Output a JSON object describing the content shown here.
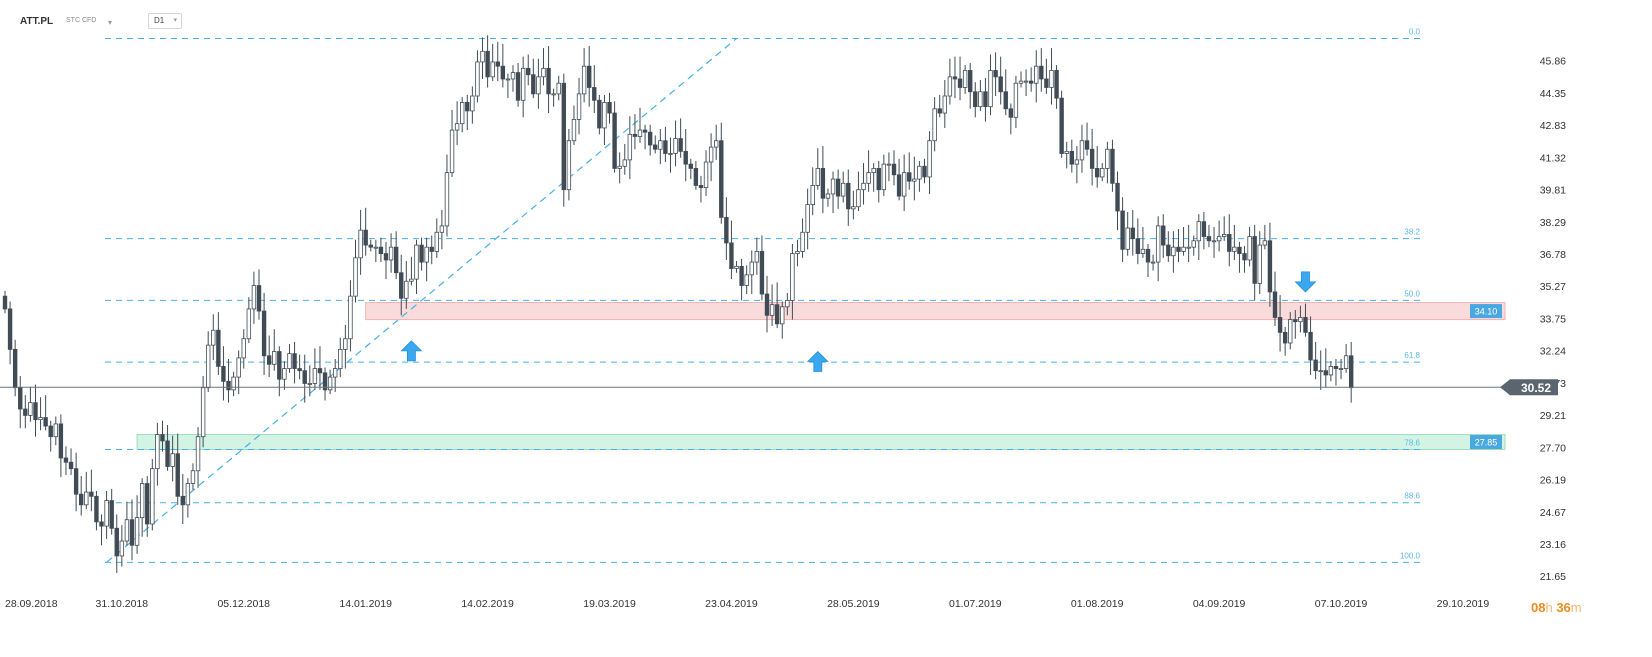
{
  "header": {
    "symbol": "ATT.PL",
    "instrument_type": "STC CFD",
    "timeframe": "D1"
  },
  "countdown": {
    "hours": "08",
    "h_unit": "h",
    "minutes": "36",
    "m_unit": "m"
  },
  "colors": {
    "candle": "#404b55",
    "fib_line": "#48b0e6",
    "fib_label": "#5bb8e8",
    "resistance_zone": "#fadbdb",
    "resistance_border": "#f2b2b2",
    "support_zone": "#d3f4e4",
    "support_border": "#9ddcbe",
    "arrow": "#3aa8f0",
    "price_tag": "#5a6570",
    "level_tag": "#4aa8e0"
  },
  "chart_data": {
    "type": "candlestick",
    "title": "",
    "xlabel": "",
    "ylabel": "",
    "ylim": [
      21.0,
      47.3
    ],
    "y_ticks": [
      45.86,
      44.35,
      42.83,
      41.32,
      39.81,
      38.29,
      36.78,
      35.27,
      33.75,
      32.24,
      30.73,
      29.21,
      27.7,
      26.19,
      24.67,
      23.16,
      21.65
    ],
    "x_ticks": [
      "28.09.2018",
      "31.10.2018",
      "05.12.2018",
      "14.01.2019",
      "14.02.2019",
      "19.03.2019",
      "23.04.2019",
      "28.05.2019",
      "01.07.2019",
      "01.08.2019",
      "04.09.2019",
      "07.10.2019",
      "29.10.2019"
    ],
    "x_tick_index": [
      0,
      23,
      47,
      71,
      95,
      119,
      143,
      167,
      191,
      215,
      239,
      263,
      287
    ],
    "last_price": "30.52",
    "grid": false,
    "fibonacci": [
      {
        "label": "0.0",
        "price": 46.9
      },
      {
        "label": "38.2",
        "price": 37.5
      },
      {
        "label": "50.0",
        "price": 34.6
      },
      {
        "label": "61.8",
        "price": 31.7
      },
      {
        "label": "78.6",
        "price": 27.6
      },
      {
        "label": "88.6",
        "price": 25.1
      },
      {
        "label": "100.0",
        "price": 22.3
      }
    ],
    "zones": [
      {
        "name": "resistance",
        "label": "34.10",
        "from": 33.7,
        "to": 34.5,
        "start_index": 71,
        "style": "red"
      },
      {
        "name": "support",
        "label": "27.85",
        "from": 27.6,
        "to": 28.3,
        "start_index": 26,
        "style": "green"
      }
    ],
    "trendline": {
      "from": {
        "index": 20,
        "price": 22.3
      },
      "to": {
        "index": 144,
        "price": 46.9
      }
    },
    "signals": [
      {
        "index": 80,
        "price": 32.7,
        "direction": "up"
      },
      {
        "index": 160,
        "price": 32.2,
        "direction": "up"
      },
      {
        "index": 256,
        "price": 35.0,
        "direction": "down"
      }
    ],
    "closes": [
      34.2,
      32.3,
      30.5,
      29.5,
      29.2,
      29.8,
      29.0,
      29.1,
      28.7,
      28.2,
      28.8,
      27.2,
      27.0,
      26.7,
      25.5,
      25.0,
      25.6,
      25.4,
      24.2,
      24.0,
      25.2,
      23.9,
      22.6,
      23.3,
      24.3,
      23.1,
      24.4,
      26.0,
      24.1,
      26.7,
      28.3,
      28.0,
      26.8,
      27.4,
      25.4,
      25.0,
      26.0,
      26.6,
      28.2,
      30.5,
      32.5,
      33.2,
      31.5,
      30.8,
      30.4,
      31.0,
      31.9,
      32.8,
      34.2,
      35.3,
      34.1,
      32.0,
      31.6,
      32.2,
      30.9,
      31.4,
      32.1,
      31.4,
      31.3,
      30.7,
      30.7,
      31.4,
      31.2,
      30.4,
      31.0,
      31.4,
      32.3,
      32.8,
      34.8,
      36.6,
      37.9,
      37.2,
      37.1,
      37.1,
      36.8,
      36.5,
      37.1,
      35.9,
      34.7,
      35.5,
      35.6,
      37.2,
      36.4,
      37.1,
      36.9,
      37.8,
      38.1,
      40.6,
      42.6,
      42.9,
      43.9,
      43.5,
      44.2,
      45.8,
      46.3,
      45.1,
      45.8,
      45.6,
      45.0,
      45.0,
      45.3,
      44.0,
      45.5,
      45.2,
      44.3,
      45.1,
      45.5,
      44.3,
      44.3,
      44.8,
      39.8,
      42.1,
      43.1,
      44.3,
      45.6,
      44.6,
      44.0,
      42.7,
      43.9,
      43.4,
      40.8,
      40.9,
      41.2,
      42.4,
      42.3,
      42.6,
      42.5,
      41.9,
      41.7,
      42.1,
      41.5,
      41.5,
      42.2,
      41.6,
      41.0,
      40.8,
      40.0,
      39.9,
      41.1,
      41.8,
      42.1,
      38.5,
      37.3,
      36.1,
      36.2,
      35.3,
      35.8,
      36.4,
      36.9,
      34.9,
      33.9,
      34.4,
      33.5,
      34.3,
      34.6,
      36.8,
      36.9,
      37.8,
      39.1,
      40.0,
      40.8,
      39.4,
      39.6,
      40.3,
      39.5,
      40.1,
      38.9,
      39.0,
      39.8,
      40.1,
      40.6,
      40.8,
      39.8,
      41.0,
      41.0,
      40.5,
      39.5,
      40.6,
      40.2,
      40.3,
      40.9,
      40.4,
      42.1,
      43.6,
      43.4,
      44.2,
      45.1,
      45.0,
      44.6,
      45.4,
      44.4,
      43.7,
      44.4,
      43.7,
      45.4,
      45.1,
      44.4,
      43.6,
      43.2,
      44.8,
      44.9,
      44.9,
      44.8,
      45.6,
      45.0,
      44.6,
      45.4,
      44.1,
      41.5,
      41.6,
      41.0,
      41.2,
      42.1,
      41.7,
      40.8,
      40.4,
      40.8,
      41.7,
      40.1,
      38.8,
      37.0,
      38.0,
      37.5,
      36.8,
      37.0,
      36.4,
      36.4,
      38.1,
      37.2,
      36.7,
      37.1,
      36.9,
      37.1,
      37.1,
      37.4,
      38.3,
      37.6,
      37.4,
      37.4,
      37.6,
      37.7,
      36.9,
      37.1,
      36.8,
      36.5,
      37.6,
      35.4,
      37.2,
      37.4,
      35.0,
      33.8,
      33.1,
      32.6,
      33.7,
      33.6,
      33.8,
      33.1,
      31.8,
      31.3,
      31.3,
      31.1,
      31.5,
      31.4,
      31.4,
      32.0,
      30.5
    ]
  }
}
